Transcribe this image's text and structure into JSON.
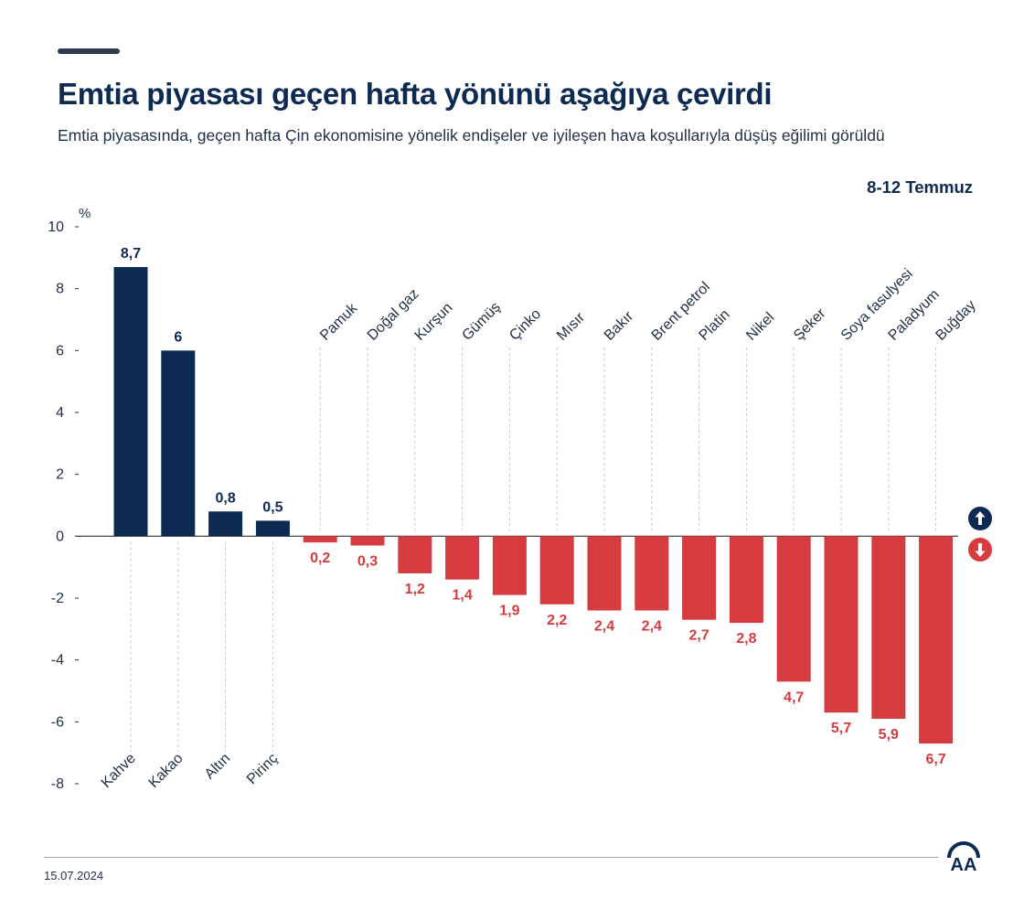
{
  "header": {
    "title": "Emtia piyasası geçen hafta yönünü aşağıya çevirdi",
    "subtitle": "Emtia piyasasında, geçen hafta Çin ekonomisine yönelik endişeler ve iyileşen hava koşullarıyla düşüş eğilimi görüldü",
    "period": "8-12 Temmuz"
  },
  "footer": {
    "date": "15.07.2024",
    "logo_text": "AA"
  },
  "colors": {
    "positive": "#0d2a52",
    "negative": "#d63b3f",
    "text": "#0d2a52",
    "axis_text": "#1f2f45"
  },
  "legend": {
    "up_icon": "arrow-up-icon",
    "down_icon": "arrow-down-icon"
  },
  "chart_data": {
    "type": "bar",
    "title": "Emtia piyasası geçen hafta yönünü aşağıya çevirdi",
    "ylabel": "%",
    "xlabel": "",
    "ylim": [
      -8,
      10
    ],
    "yticks": [
      10,
      8,
      6,
      4,
      2,
      0,
      -2,
      -4,
      -6,
      -8
    ],
    "grid": false,
    "categories": [
      "Kahve",
      "Kakao",
      "Altın",
      "Pirinç",
      "Pamuk",
      "Doğal gaz",
      "Kurşun",
      "Gümüş",
      "Çinko",
      "Mısır",
      "Bakır",
      "Brent petrol",
      "Platin",
      "Nikel",
      "Şeker",
      "Soya fasulyesi",
      "Paladyum",
      "Buğday"
    ],
    "values": [
      8.7,
      6,
      0.8,
      0.5,
      -0.2,
      -0.3,
      -1.2,
      -1.4,
      -1.9,
      -2.2,
      -2.4,
      -2.4,
      -2.7,
      -2.8,
      -4.7,
      -5.7,
      -5.9,
      -6.7
    ],
    "value_labels": [
      "8,7",
      "6",
      "0,8",
      "0,5",
      "0,2",
      "0,3",
      "1,2",
      "1,4",
      "1,9",
      "2,2",
      "2,4",
      "2,4",
      "2,7",
      "2,8",
      "4,7",
      "5,7",
      "5,9",
      "6,7"
    ]
  }
}
